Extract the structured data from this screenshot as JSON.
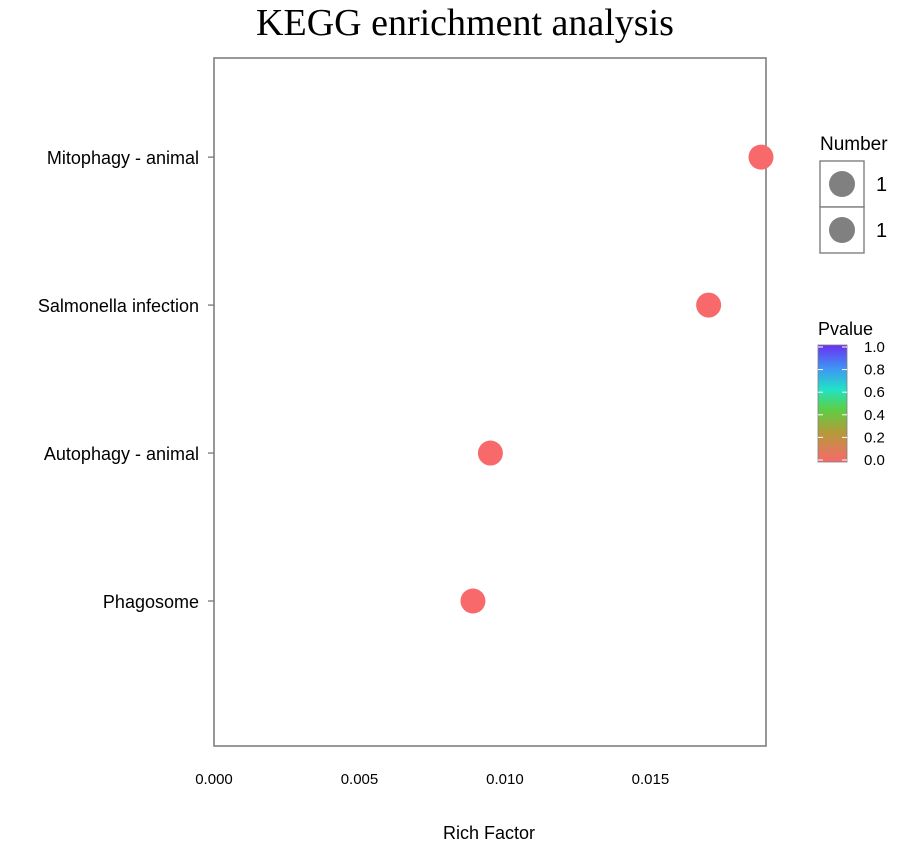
{
  "chart_data": {
    "type": "scatter",
    "title": "KEGG enrichment analysis",
    "xlabel": "Rich Factor",
    "ylabel": "",
    "xlim": [
      0.0,
      0.0188
    ],
    "x_ticks": [
      "0.000",
      "0.005",
      "0.010",
      "0.015"
    ],
    "x_tick_values": [
      0.0,
      0.005,
      0.01,
      0.015
    ],
    "categories": [
      "Phagosome",
      "Autophagy - animal",
      "Salmonella infection",
      "Mitophagy - animal"
    ],
    "points": [
      {
        "category": "Mitophagy - animal",
        "rich_factor": 0.0188,
        "number": 1,
        "pvalue": 0.0
      },
      {
        "category": "Salmonella infection",
        "rich_factor": 0.017,
        "number": 1,
        "pvalue": 0.0
      },
      {
        "category": "Autophagy - animal",
        "rich_factor": 0.0095,
        "number": 1,
        "pvalue": 0.0
      },
      {
        "category": "Phagosome",
        "rich_factor": 0.0089,
        "number": 1,
        "pvalue": 0.0
      }
    ],
    "grid": false,
    "size_legend": {
      "title": "Number",
      "entries": [
        "1",
        "1"
      ],
      "color": "#808080"
    },
    "color_legend": {
      "title": "Pvalue",
      "ticks": [
        "1.0",
        "0.8",
        "0.6",
        "0.4",
        "0.2",
        "0.0"
      ],
      "tick_values": [
        1.0,
        0.8,
        0.6,
        0.4,
        0.2,
        0.0
      ],
      "gradient": [
        "#f8696b",
        "#74b82e",
        "#22e2c6",
        "#3f95f5",
        "#6b2ff0"
      ]
    },
    "point_color": "#f8696b",
    "legend_position": "right"
  }
}
